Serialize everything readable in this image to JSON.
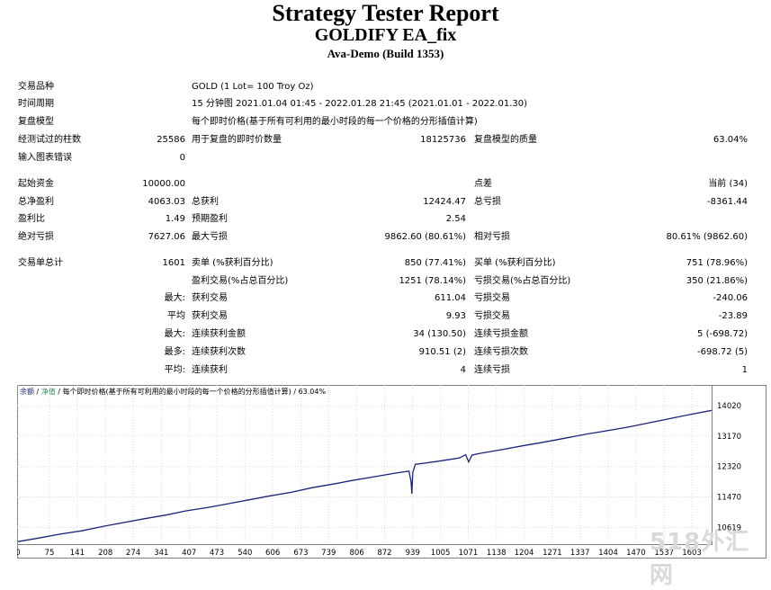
{
  "header": {
    "title": "Strategy Tester Report",
    "subtitle": "GOLDIFY EA_fix",
    "build": "Ava-Demo (Build 1353)"
  },
  "info": {
    "symbol_label": "交易品种",
    "symbol_value": "GOLD (1 Lot= 100 Troy Oz)",
    "period_label": "时间周期",
    "period_value": "15 分钟图 2021.01.04 01:45 - 2022.01.28 21:45 (2021.01.01 - 2022.01.30)",
    "model_label": "复盘模型",
    "model_value": "每个即时价格(基于所有可利用的最小时段的每一个价格的分形插值计算)",
    "bars_label": "经测试过的柱数",
    "bars_value": "25586",
    "ticks_label": "用于复盘的即时价数量",
    "ticks_value": "18125736",
    "quality_label": "复盘模型的质量",
    "quality_value": "63.04%",
    "errors_label": "输入图表错误",
    "errors_value": "0"
  },
  "stats": {
    "deposit_label": "起始资金",
    "deposit_value": "10000.00",
    "spread_label": "点差",
    "spread_value": "当前 (34)",
    "net_label": "总净盈利",
    "net_value": "4063.03",
    "gross_profit_label": "总获利",
    "gross_profit_value": "12424.47",
    "gross_loss_label": "总亏损",
    "gross_loss_value": "-8361.44",
    "pf_label": "盈利比",
    "pf_value": "1.49",
    "payoff_label": "预期盈利",
    "payoff_value": "2.54",
    "abs_dd_label": "绝对亏损",
    "abs_dd_value": "7627.06",
    "max_dd_label": "最大亏损",
    "max_dd_value": "9862.60 (80.61%)",
    "rel_dd_label": "相对亏损",
    "rel_dd_value": "80.61% (9862.60)"
  },
  "trades": {
    "total_label": "交易单总计",
    "total_value": "1601",
    "short_label": "卖单 (%获利百分比)",
    "short_value": "850 (77.41%)",
    "long_label": "买单 (%获利百分比)",
    "long_value": "751 (78.96%)",
    "profit_trades_label": "盈利交易(%占总百分比)",
    "profit_trades_value": "1251 (78.14%)",
    "loss_trades_label": "亏损交易(%占总百分比)",
    "loss_trades_value": "350 (21.86%)",
    "largest_prefix": "最大:",
    "largest_profit_label": "获利交易",
    "largest_profit_value": "611.04",
    "largest_loss_label": "亏损交易",
    "largest_loss_value": "-240.06",
    "avg_prefix": "平均",
    "avg_profit_label": "获利交易",
    "avg_profit_value": "9.93",
    "avg_loss_label": "亏损交易",
    "avg_loss_value": "-23.89",
    "max_consec_prefix": "最大:",
    "max_consec_win_label": "连续获利金额",
    "max_consec_win_value": "34 (130.50)",
    "max_consec_loss_label": "连续亏损金额",
    "max_consec_loss_value": "5 (-698.72)",
    "most_prefix": "最多:",
    "most_win_label": "连续获利次数",
    "most_win_value": "910.51 (2)",
    "most_loss_label": "连续亏损次数",
    "most_loss_value": "-698.72 (5)",
    "avg_consec_prefix": "平均:",
    "avg_consec_win_label": "连续获利",
    "avg_consec_win_value": "4",
    "avg_consec_loss_label": "连续亏损",
    "avg_consec_loss_value": "1"
  },
  "chart_data": {
    "type": "line",
    "legend": {
      "balance": "余额",
      "sep1": " / ",
      "equity": "净值",
      "rest": " / 每个即时价格(基于所有可利用的最小时段的每一个价格的分形插值计算) / 63.04%"
    },
    "x_ticks": [
      "0",
      "75",
      "141",
      "208",
      "274",
      "341",
      "407",
      "473",
      "540",
      "606",
      "673",
      "739",
      "806",
      "872",
      "939",
      "1005",
      "1071",
      "1138",
      "1204",
      "1271",
      "1337",
      "1404",
      "1470",
      "1537",
      "1603"
    ],
    "y_ticks": [
      "14020",
      "13170",
      "12320",
      "11470",
      "10619"
    ],
    "xlim": [
      0,
      1650
    ],
    "ylim": [
      10150,
      14250
    ],
    "series": [
      {
        "points": [
          [
            0,
            10220
          ],
          [
            50,
            10320
          ],
          [
            100,
            10430
          ],
          [
            150,
            10520
          ],
          [
            200,
            10640
          ],
          [
            250,
            10750
          ],
          [
            300,
            10860
          ],
          [
            350,
            10960
          ],
          [
            400,
            11080
          ],
          [
            450,
            11170
          ],
          [
            500,
            11280
          ],
          [
            550,
            11390
          ],
          [
            600,
            11500
          ],
          [
            650,
            11600
          ],
          [
            700,
            11730
          ],
          [
            750,
            11830
          ],
          [
            800,
            11940
          ],
          [
            850,
            12040
          ],
          [
            900,
            12140
          ],
          [
            930,
            12190
          ],
          [
            935,
            11900
          ],
          [
            937,
            11560
          ],
          [
            939,
            12150
          ],
          [
            945,
            12380
          ],
          [
            1000,
            12470
          ],
          [
            1050,
            12560
          ],
          [
            1065,
            12650
          ],
          [
            1072,
            12450
          ],
          [
            1080,
            12640
          ],
          [
            1100,
            12690
          ],
          [
            1150,
            12790
          ],
          [
            1200,
            12900
          ],
          [
            1250,
            13000
          ],
          [
            1300,
            13110
          ],
          [
            1350,
            13220
          ],
          [
            1400,
            13320
          ],
          [
            1450,
            13420
          ],
          [
            1500,
            13540
          ],
          [
            1550,
            13660
          ],
          [
            1600,
            13780
          ],
          [
            1650,
            13890
          ]
        ],
        "color": "#1b237a"
      }
    ]
  }
}
